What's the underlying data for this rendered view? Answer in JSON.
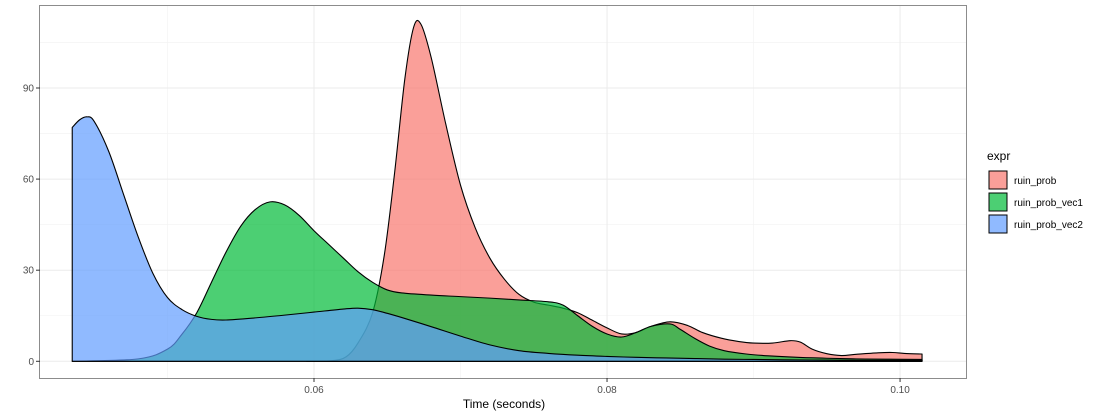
{
  "chart_data": {
    "type": "area",
    "subtype": "density",
    "xlabel": "Time (seconds)",
    "ylabel": "",
    "xlim": [
      0.0413,
      0.1045
    ],
    "ylim": [
      -5.5,
      117
    ],
    "x_ticks": [
      0.06,
      0.08,
      0.1
    ],
    "x_tick_labels": [
      "0.06",
      "0.08",
      "0.10"
    ],
    "y_ticks": [
      0,
      30,
      60,
      90
    ],
    "y_tick_labels": [
      "0",
      "30",
      "60",
      "90"
    ],
    "grid": true,
    "legend": {
      "title": "expr",
      "position": "right",
      "labels": [
        "ruin_prob",
        "ruin_prob_vec1",
        "ruin_prob_vec2"
      ]
    },
    "series": [
      {
        "name": "ruin_prob",
        "color": "#F8766D",
        "points": [
          [
            0.0595,
            0
          ],
          [
            0.0612,
            0.2
          ],
          [
            0.0622,
            1.5
          ],
          [
            0.063,
            6
          ],
          [
            0.064,
            16
          ],
          [
            0.0648,
            35
          ],
          [
            0.0655,
            62
          ],
          [
            0.0662,
            93
          ],
          [
            0.0668,
            110
          ],
          [
            0.0673,
            111
          ],
          [
            0.068,
            100
          ],
          [
            0.069,
            78
          ],
          [
            0.07,
            58
          ],
          [
            0.071,
            44
          ],
          [
            0.072,
            34
          ],
          [
            0.073,
            27
          ],
          [
            0.074,
            22
          ],
          [
            0.075,
            19.5
          ],
          [
            0.076,
            18.5
          ],
          [
            0.077,
            17.5
          ],
          [
            0.078,
            16
          ],
          [
            0.079,
            13.5
          ],
          [
            0.08,
            11
          ],
          [
            0.081,
            9
          ],
          [
            0.082,
            9.5
          ],
          [
            0.083,
            11.5
          ],
          [
            0.0843,
            13
          ],
          [
            0.0855,
            11.8
          ],
          [
            0.0865,
            9.5
          ],
          [
            0.0878,
            7.6
          ],
          [
            0.089,
            6.5
          ],
          [
            0.09,
            6
          ],
          [
            0.0913,
            6
          ],
          [
            0.0925,
            6.8
          ],
          [
            0.0932,
            6.3
          ],
          [
            0.094,
            4
          ],
          [
            0.095,
            2.5
          ],
          [
            0.096,
            1.9
          ],
          [
            0.097,
            2.3
          ],
          [
            0.0985,
            2.8
          ],
          [
            0.0995,
            2.9
          ],
          [
            0.1003,
            2.6
          ],
          [
            0.1015,
            2.4
          ]
        ]
      },
      {
        "name": "ruin_prob_vec1",
        "color": "#00BA38",
        "points": [
          [
            0.0435,
            0
          ],
          [
            0.048,
            0.8
          ],
          [
            0.05,
            4
          ],
          [
            0.051,
            9
          ],
          [
            0.052,
            16
          ],
          [
            0.053,
            26
          ],
          [
            0.054,
            36
          ],
          [
            0.055,
            44.5
          ],
          [
            0.056,
            50
          ],
          [
            0.057,
            52.5
          ],
          [
            0.058,
            51.5
          ],
          [
            0.059,
            48
          ],
          [
            0.06,
            43
          ],
          [
            0.061,
            38.5
          ],
          [
            0.062,
            34
          ],
          [
            0.063,
            29.5
          ],
          [
            0.064,
            26
          ],
          [
            0.065,
            23.5
          ],
          [
            0.066,
            22.5
          ],
          [
            0.068,
            21.8
          ],
          [
            0.07,
            21.3
          ],
          [
            0.072,
            20.8
          ],
          [
            0.074,
            20.2
          ],
          [
            0.076,
            19.6
          ],
          [
            0.077,
            18.5
          ],
          [
            0.078,
            15
          ],
          [
            0.079,
            11.5
          ],
          [
            0.08,
            9
          ],
          [
            0.081,
            8
          ],
          [
            0.082,
            9.5
          ],
          [
            0.083,
            11.5
          ],
          [
            0.0843,
            12.3
          ],
          [
            0.085,
            10.5
          ],
          [
            0.086,
            7.5
          ],
          [
            0.087,
            5
          ],
          [
            0.088,
            3.5
          ],
          [
            0.0895,
            2.4
          ],
          [
            0.091,
            1.8
          ],
          [
            0.093,
            1.3
          ],
          [
            0.095,
            1.0
          ],
          [
            0.097,
            0.8
          ],
          [
            0.099,
            0.7
          ],
          [
            0.1015,
            0.6
          ]
        ]
      },
      {
        "name": "ruin_prob_vec2",
        "color": "#619CFF",
        "points": [
          [
            0.0435,
            77
          ],
          [
            0.044,
            79.5
          ],
          [
            0.0445,
            80.5
          ],
          [
            0.045,
            79
          ],
          [
            0.046,
            69
          ],
          [
            0.047,
            55
          ],
          [
            0.048,
            41
          ],
          [
            0.049,
            29
          ],
          [
            0.05,
            21
          ],
          [
            0.051,
            17
          ],
          [
            0.052,
            14.8
          ],
          [
            0.053,
            13.8
          ],
          [
            0.054,
            13.6
          ],
          [
            0.056,
            14.3
          ],
          [
            0.058,
            15.2
          ],
          [
            0.06,
            16.2
          ],
          [
            0.062,
            17.2
          ],
          [
            0.063,
            17.5
          ],
          [
            0.064,
            17.0
          ],
          [
            0.065,
            15.8
          ],
          [
            0.066,
            14.4
          ],
          [
            0.068,
            11.4
          ],
          [
            0.07,
            8.3
          ],
          [
            0.072,
            5.4
          ],
          [
            0.074,
            3.5
          ],
          [
            0.076,
            2.6
          ],
          [
            0.078,
            2.0
          ],
          [
            0.08,
            1.6
          ],
          [
            0.082,
            1.3
          ],
          [
            0.084,
            1.1
          ],
          [
            0.086,
            0.9
          ],
          [
            0.088,
            0.7
          ],
          [
            0.09,
            0.6
          ],
          [
            0.092,
            0.5
          ],
          [
            0.095,
            0.4
          ],
          [
            0.098,
            0.35
          ],
          [
            0.1015,
            0.3
          ]
        ]
      }
    ]
  }
}
